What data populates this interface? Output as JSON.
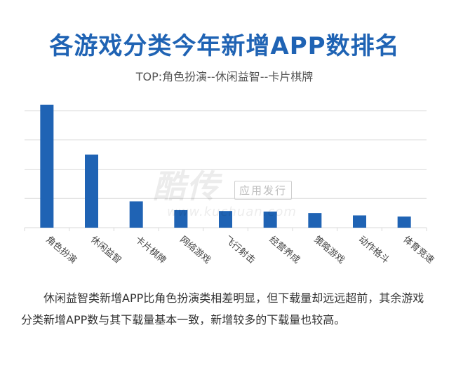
{
  "header": {
    "title": "各游戏分类今年新增APP数排名",
    "subtitle": "TOP:角色扮演--休闲益智--卡片棋牌"
  },
  "watermark": {
    "brand": "酷传",
    "tag": "应用发行",
    "url": "www.kuchuan.com"
  },
  "body_text": "休闲益智类新增APP比角色扮演类相差明显，但下载量却远远超前，其余游戏分类新增APP数与其下载量基本一致，新增较多的下载量也较高。",
  "colors": {
    "bar": "#1f63b4",
    "title": "#1f63b4",
    "grid": "#d9d9d9"
  },
  "chart_data": {
    "type": "bar",
    "categories": [
      "角色扮演",
      "休闲益智",
      "卡片棋牌",
      "网络游戏",
      "飞行射击",
      "经营养成",
      "策略游戏",
      "动作格斗",
      "体育竞速"
    ],
    "values": [
      4.2,
      2.5,
      0.9,
      0.6,
      0.57,
      0.55,
      0.5,
      0.42,
      0.38
    ],
    "ylim": [
      0,
      4
    ],
    "y_ticks": [
      0,
      1,
      2,
      3,
      4
    ],
    "grid": true,
    "ytick_labels_shown": false,
    "legend": "none"
  }
}
